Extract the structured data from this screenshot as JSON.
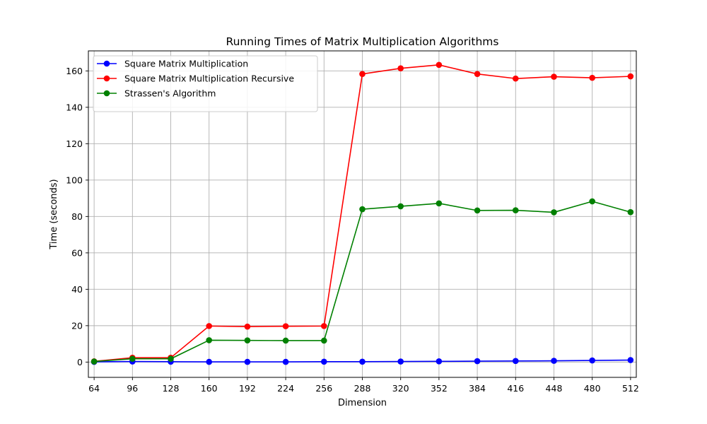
{
  "chart_data": {
    "type": "line",
    "title": "Running Times of Matrix Multiplication Algorithms",
    "xlabel": "Dimension",
    "ylabel": "Time (seconds)",
    "x": [
      64,
      96,
      128,
      160,
      192,
      224,
      256,
      288,
      320,
      352,
      384,
      416,
      448,
      480,
      512
    ],
    "x_tick_labels": [
      "64",
      "96",
      "128",
      "160",
      "192",
      "224",
      "256",
      "288",
      "320",
      "352",
      "384",
      "416",
      "448",
      "480",
      "512"
    ],
    "y_ticks": [
      0,
      20,
      40,
      60,
      80,
      100,
      120,
      140,
      160
    ],
    "y_tick_labels": [
      "0",
      "20",
      "40",
      "60",
      "80",
      "100",
      "120",
      "140",
      "160"
    ],
    "ylim": [
      -8.4,
      171
    ],
    "grid": true,
    "legend_position": "upper-left",
    "series": [
      {
        "name": "Square Matrix Multiplication",
        "color": "#0000ff",
        "values": [
          0.1,
          0.3,
          0.2,
          0.1,
          0.1,
          0.1,
          0.2,
          0.2,
          0.3,
          0.4,
          0.5,
          0.6,
          0.7,
          0.9,
          1.1
        ]
      },
      {
        "name": "Square Matrix Multiplication Recursive",
        "color": "#ff0000",
        "values": [
          0.4,
          2.4,
          2.4,
          19.8,
          19.5,
          19.7,
          19.8,
          158.3,
          161.4,
          163.3,
          158.3,
          155.8,
          156.8,
          156.2,
          157.0
        ]
      },
      {
        "name": "Strassen's Algorithm",
        "color": "#008000",
        "values": [
          0.3,
          1.8,
          1.8,
          12.0,
          11.9,
          11.8,
          11.8,
          84.0,
          85.6,
          87.2,
          83.3,
          83.4,
          82.3,
          88.3,
          82.4
        ]
      }
    ]
  }
}
